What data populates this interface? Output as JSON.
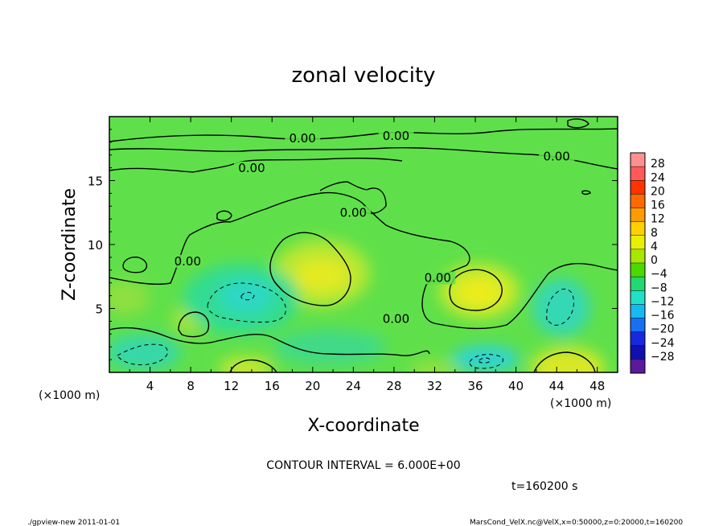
{
  "chart_data": {
    "type": "heatmap",
    "subtype": "contour",
    "title": "zonal velocity",
    "xlabel": "X-coordinate",
    "ylabel": "Z-coordinate",
    "x_unit_label": "(×1000 m)",
    "x_unit_label_left": "(×1000 m)",
    "xticks": [
      4,
      8,
      12,
      16,
      20,
      24,
      28,
      32,
      36,
      40,
      44,
      48
    ],
    "yticks": [
      5,
      10,
      15
    ],
    "xlim": [
      0,
      50
    ],
    "ylim": [
      0,
      20
    ],
    "contour_interval_text": "CONTOUR INTERVAL = 6.000E+00",
    "time_text": "t=160200 s",
    "colorbar": {
      "levels": [
        28,
        24,
        20,
        16,
        12,
        8,
        4,
        0,
        -4,
        -8,
        -12,
        -16,
        -20,
        -24,
        -28
      ],
      "labels": [
        "28",
        "24",
        "20",
        "16",
        "12",
        "8",
        "4",
        "0",
        "−4",
        "−8",
        "−12",
        "−16",
        "−20",
        "−24",
        "−28"
      ],
      "colors": [
        "#ff9090",
        "#ff5a5a",
        "#ff3300",
        "#ff6a00",
        "#ff9a00",
        "#ffd000",
        "#e8f000",
        "#a8e800",
        "#4cd900",
        "#22d870",
        "#22e0c8",
        "#18b8f0",
        "#1870f0",
        "#1828e0",
        "#1010b0",
        "#5a1a9a"
      ]
    },
    "contour_labels": [
      {
        "text": "0.00",
        "x": 19.0,
        "z": 18.1
      },
      {
        "text": "0.00",
        "x": 28.2,
        "z": 18.3
      },
      {
        "text": "0.00",
        "x": 44.0,
        "z": 16.7
      },
      {
        "text": "0.00",
        "x": 14.0,
        "z": 15.8
      },
      {
        "text": "0.00",
        "x": 24.0,
        "z": 12.3
      },
      {
        "text": "0.00",
        "x": 7.7,
        "z": 8.5
      },
      {
        "text": "0.00",
        "x": 32.3,
        "z": 7.2
      },
      {
        "text": "0.00",
        "x": 28.2,
        "z": 4.0
      }
    ],
    "features": [
      {
        "kind": "positive_max",
        "x": 21.0,
        "z": 7.5,
        "value": 8
      },
      {
        "kind": "positive_max",
        "x": 36.5,
        "z": 6.3,
        "value": 8
      },
      {
        "kind": "positive_max",
        "x": 45.0,
        "z": 0.6,
        "value": 10
      },
      {
        "kind": "positive_max",
        "x": 15.5,
        "z": 0.6,
        "value": 8
      },
      {
        "kind": "negative_min",
        "x": 13.8,
        "z": 5.9,
        "value": -11
      },
      {
        "kind": "negative_min",
        "x": 37.0,
        "z": 0.9,
        "value": -11
      },
      {
        "kind": "negative_min",
        "x": 44.5,
        "z": 4.8,
        "value": -7
      },
      {
        "kind": "negative_min",
        "x": 3.0,
        "z": 1.2,
        "value": -6
      }
    ]
  },
  "footer": {
    "left": "./gpview-new   2011-01-01",
    "right": "MarsCond_VelX.nc@VelX,x=0:50000,z=0:20000,t=160200"
  }
}
